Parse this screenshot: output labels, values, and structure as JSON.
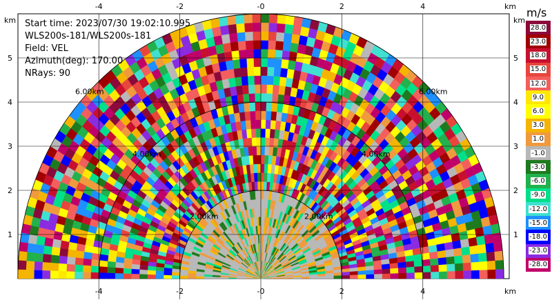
{
  "info": {
    "start_time": "Start time: 2023/07/30 19:02:10.995",
    "instrument": "WLS200s-181/WLS200s-181",
    "field": "Field: VEL",
    "azimuth": "Azimuth(deg): 170.00",
    "nrays": "NRays: 90"
  },
  "axes": {
    "x_unit": "km",
    "y_unit": "km",
    "x_ticks": [
      "-4",
      "-2",
      "-0",
      "2",
      "4"
    ],
    "y_ticks": [
      "1",
      "2",
      "3",
      "4",
      "5"
    ],
    "x_values": [
      -4,
      -2,
      0,
      2,
      4
    ],
    "y_values": [
      1,
      2,
      3,
      4,
      5
    ],
    "x_range": [
      -6.0,
      6.0
    ],
    "y_range": [
      0,
      6.0
    ]
  },
  "range_rings": [
    {
      "label": "2.00km",
      "radius": 2
    },
    {
      "label": "4.00km",
      "radius": 4
    },
    {
      "label": "6.00km",
      "radius": 6
    }
  ],
  "colorbar": {
    "unit": "m/s",
    "labels": [
      "28.0",
      "23.0",
      "18.0",
      "15.0",
      "12.0",
      "9.0",
      "6.0",
      "3.0",
      "1.0",
      "-1.0",
      "-3.0",
      "-6.0",
      "-9.0",
      "-12.0",
      "-15.0",
      "-18.0",
      "-23.0",
      "-28.0"
    ],
    "colors": [
      "#8b0a3a",
      "#a00000",
      "#c8102e",
      "#e8453c",
      "#f25f5c",
      "#ffe800",
      "#ffff00",
      "#f5b400",
      "#f09a3e",
      "#b8b8b8",
      "#1e7a1e",
      "#22b14c",
      "#00e08a",
      "#40e0d0",
      "#1e90ff",
      "#0000ff",
      "#8a2be2",
      "#c0006a"
    ]
  },
  "chart_data": {
    "type": "heatmap",
    "title": "",
    "xlabel": "km",
    "ylabel": "km",
    "xlim": [
      -6,
      6
    ],
    "ylim": [
      0,
      6
    ],
    "field": "VEL",
    "units": "m/s",
    "nrays": 90,
    "azimuth_deg": 170.0,
    "range_rings_km": [
      2,
      4,
      6
    ],
    "color_levels": [
      28.0,
      23.0,
      18.0,
      15.0,
      12.0,
      9.0,
      6.0,
      3.0,
      1.0,
      -1.0,
      -3.0,
      -6.0,
      -9.0,
      -12.0,
      -15.0,
      -18.0,
      -23.0,
      -28.0
    ]
  }
}
